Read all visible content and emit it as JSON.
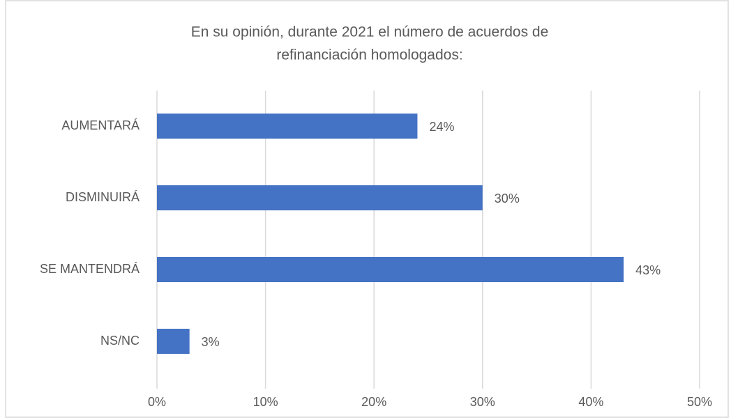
{
  "chart_data": {
    "type": "bar",
    "orientation": "horizontal",
    "title": [
      "En su opinión, durante 2021 el número de acuerdos de",
      "refinanciación homologados:"
    ],
    "categories": [
      "AUMENTARÁ",
      "DISMINUIRÁ",
      "SE MANTENDRÁ",
      "NS/NC"
    ],
    "values": [
      24,
      30,
      43,
      3
    ],
    "value_labels": [
      "24%",
      "30%",
      "43%",
      "3%"
    ],
    "color": "#4472c4",
    "xlim": [
      0,
      50
    ],
    "xticks": [
      {
        "value": 0,
        "label": "0%"
      },
      {
        "value": 10,
        "label": "10%"
      },
      {
        "value": 20,
        "label": "20%"
      },
      {
        "value": 30,
        "label": "30%"
      },
      {
        "value": 40,
        "label": "40%"
      },
      {
        "value": 50,
        "label": "50%"
      }
    ],
    "grid": true
  }
}
